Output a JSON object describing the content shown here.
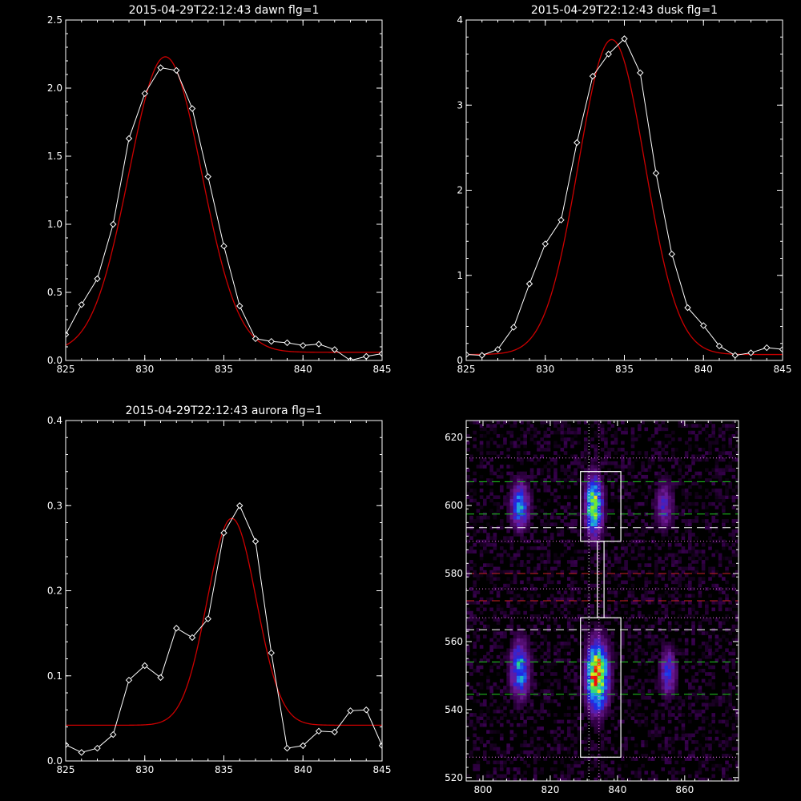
{
  "colors": {
    "background": "#000000",
    "axis": "#ffffff",
    "data_line": "#ffffff",
    "fit_line": "#cc0000",
    "green_dash": "#22cc22",
    "red_dash": "#cc2222",
    "white_dash": "#ffffff",
    "magenta_dot": "#ee77ee"
  },
  "chart_data": [
    {
      "id": "dawn",
      "type": "line",
      "title": "2015-04-29T22:12:43 dawn flg=1",
      "xlim": [
        825,
        845
      ],
      "ylim": [
        0,
        2.5
      ],
      "xticks": [
        825,
        830,
        835,
        840,
        845
      ],
      "yticks": [
        0.0,
        0.5,
        1.0,
        1.5,
        2.0,
        2.5
      ],
      "yticklabels": [
        "0.0",
        "0.5",
        "1.0",
        "1.5",
        "2.0",
        "2.5"
      ],
      "grid": false,
      "series": [
        {
          "kind": "data",
          "marker": "diamond",
          "x": [
            825,
            826,
            827,
            828,
            829,
            830,
            831,
            832,
            833,
            834,
            835,
            836,
            837,
            838,
            839,
            840,
            841,
            842,
            843,
            844,
            845
          ],
          "y": [
            0.19,
            0.41,
            0.6,
            1.0,
            1.63,
            1.96,
            2.15,
            2.13,
            1.85,
            1.35,
            0.84,
            0.4,
            0.16,
            0.14,
            0.13,
            0.11,
            0.12,
            0.08,
            0.0,
            0.03,
            0.05
          ]
        },
        {
          "kind": "fit",
          "gaussian": {
            "amplitude": 2.17,
            "center": 831.3,
            "sigma": 2.3,
            "offset": 0.06
          }
        }
      ]
    },
    {
      "id": "dusk",
      "type": "line",
      "title": "2015-04-29T22:12:43 dusk flg=1",
      "xlim": [
        825,
        845
      ],
      "ylim": [
        0,
        4
      ],
      "xticks": [
        825,
        830,
        835,
        840,
        845
      ],
      "yticks": [
        0,
        1,
        2,
        3,
        4
      ],
      "yticklabels": [
        "0",
        "1",
        "2",
        "3",
        "4"
      ],
      "grid": false,
      "series": [
        {
          "kind": "data",
          "marker": "diamond",
          "x": [
            825,
            826,
            827,
            828,
            829,
            830,
            831,
            832,
            833,
            834,
            835,
            836,
            837,
            838,
            839,
            840,
            841,
            842,
            843,
            844,
            845
          ],
          "y": [
            0.07,
            0.06,
            0.13,
            0.39,
            0.9,
            1.37,
            1.65,
            2.56,
            3.34,
            3.6,
            3.78,
            3.38,
            2.2,
            1.25,
            0.62,
            0.41,
            0.17,
            0.06,
            0.09,
            0.15,
            0.13
          ]
        },
        {
          "kind": "fit",
          "gaussian": {
            "amplitude": 3.7,
            "center": 834.2,
            "sigma": 2.1,
            "offset": 0.07
          }
        }
      ]
    },
    {
      "id": "aurora",
      "type": "line",
      "title": "2015-04-29T22:12:43 aurora flg=1",
      "xlim": [
        825,
        845
      ],
      "ylim": [
        0,
        0.4
      ],
      "xticks": [
        825,
        830,
        835,
        840,
        845
      ],
      "yticks": [
        0.0,
        0.1,
        0.2,
        0.3,
        0.4
      ],
      "yticklabels": [
        "0.0",
        "0.1",
        "0.2",
        "0.3",
        "0.4"
      ],
      "grid": false,
      "series": [
        {
          "kind": "data",
          "marker": "diamond",
          "x": [
            825,
            826,
            827,
            828,
            829,
            830,
            831,
            832,
            833,
            834,
            835,
            836,
            837,
            838,
            839,
            840,
            841,
            842,
            843,
            844,
            845
          ],
          "y": [
            0.019,
            0.01,
            0.015,
            0.031,
            0.095,
            0.112,
            0.098,
            0.156,
            0.145,
            0.167,
            0.268,
            0.3,
            0.258,
            0.127,
            0.015,
            0.018,
            0.035,
            0.034,
            0.059,
            0.06,
            0.018
          ]
        },
        {
          "kind": "fit",
          "gaussian": {
            "amplitude": 0.243,
            "center": 835.5,
            "sigma": 1.55,
            "offset": 0.042
          }
        }
      ]
    },
    {
      "id": "image",
      "type": "heatmap",
      "title": "",
      "xlim": [
        795,
        876
      ],
      "ylim": [
        519,
        625
      ],
      "xticks": [
        800,
        820,
        840,
        860
      ],
      "yticks": [
        520,
        540,
        560,
        580,
        600,
        620
      ],
      "grid": false,
      "colormap": "rainbow-on-black",
      "blobs": [
        {
          "x": 811,
          "y": 600,
          "sx": 2.0,
          "sy": 5.0,
          "amp": 0.55
        },
        {
          "x": 833,
          "y": 600,
          "sx": 1.8,
          "sy": 6.0,
          "amp": 0.85
        },
        {
          "x": 854,
          "y": 600,
          "sx": 2.0,
          "sy": 5.0,
          "amp": 0.35
        },
        {
          "x": 811,
          "y": 552,
          "sx": 2.0,
          "sy": 6.0,
          "amp": 0.6
        },
        {
          "x": 834,
          "y": 550,
          "sx": 2.3,
          "sy": 7.0,
          "amp": 1.0
        },
        {
          "x": 855,
          "y": 551,
          "sx": 1.7,
          "sy": 5.0,
          "amp": 0.45
        }
      ],
      "boxes": [
        {
          "x0": 829,
          "x1": 841,
          "y0": 589.5,
          "y1": 610
        },
        {
          "x0": 829,
          "x1": 841,
          "y0": 526,
          "y1": 567
        },
        {
          "x0": 834,
          "x1": 836,
          "y0": 567,
          "y1": 589.5
        }
      ],
      "hlines": [
        {
          "y": 614,
          "style": "dotted",
          "color": "magenta"
        },
        {
          "y": 607,
          "style": "dashed",
          "color": "green"
        },
        {
          "y": 597.5,
          "style": "dashed",
          "color": "green"
        },
        {
          "y": 593.5,
          "style": "dashed",
          "color": "white"
        },
        {
          "y": 589.5,
          "style": "dotted",
          "color": "magenta"
        },
        {
          "y": 580,
          "style": "dashed",
          "color": "red"
        },
        {
          "y": 575.5,
          "style": "dotted",
          "color": "magenta"
        },
        {
          "y": 572,
          "style": "dashed",
          "color": "red"
        },
        {
          "y": 567,
          "style": "dotted",
          "color": "magenta"
        },
        {
          "y": 563.5,
          "style": "dashed",
          "color": "white"
        },
        {
          "y": 554,
          "style": "dashed",
          "color": "green"
        },
        {
          "y": 544.5,
          "style": "dashed",
          "color": "green"
        },
        {
          "y": 526,
          "style": "dotted",
          "color": "magenta"
        }
      ],
      "vlines": [
        {
          "x": 831.5,
          "style": "dotted",
          "color": "white"
        },
        {
          "x": 834.5,
          "style": "dotted",
          "color": "magenta"
        }
      ]
    }
  ]
}
